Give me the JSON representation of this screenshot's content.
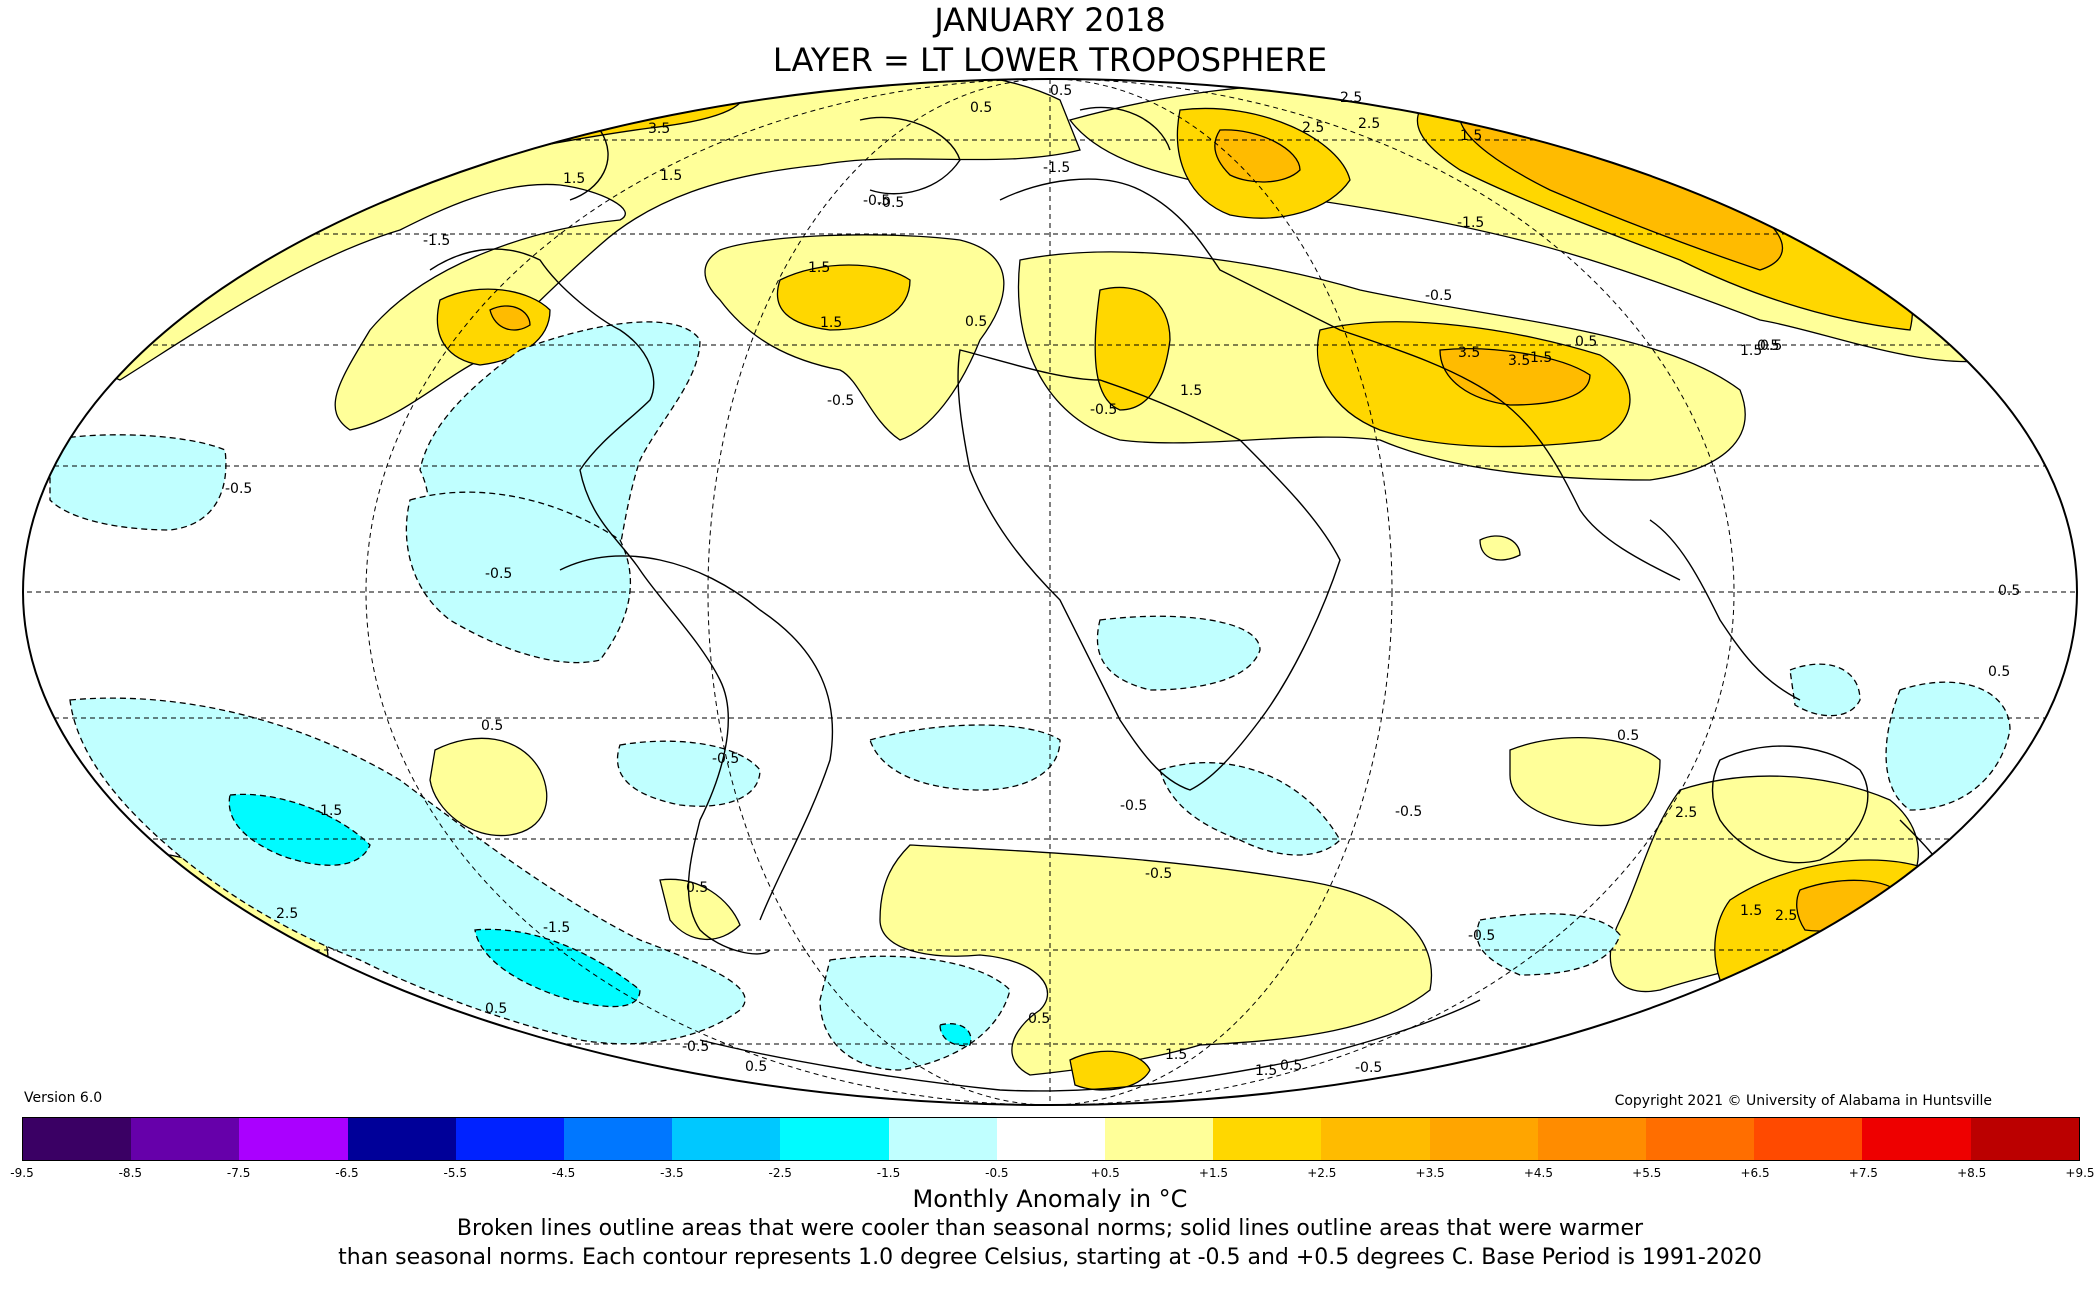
{
  "title": {
    "line1": "JANUARY 2018",
    "line2": "LAYER = LT LOWER TROPOSPHERE"
  },
  "version": "Version 6.0",
  "copyright": "Copyright 2021 © University of Alabama in Huntsville",
  "colorbar": {
    "ticks": [
      "-9.5",
      "-8.5",
      "-7.5",
      "-6.5",
      "-5.5",
      "-4.5",
      "-3.5",
      "-2.5",
      "-1.5",
      "-0.5",
      "+0.5",
      "+1.5",
      "+2.5",
      "+3.5",
      "+4.5",
      "+5.5",
      "+6.5",
      "+7.5",
      "+8.5",
      "+9.5"
    ],
    "colors": [
      "#3a0064",
      "#6600aa",
      "#aa00ff",
      "#000099",
      "#0022ff",
      "#0077ff",
      "#00c8ff",
      "#00fbff",
      "#c0ffff",
      "#ffffff",
      "#ffff99",
      "#ffd700",
      "#ffbb00",
      "#ffa500",
      "#ff8c00",
      "#ff6e00",
      "#ff4a00",
      "#ee0000",
      "#bb0000"
    ]
  },
  "units_label": "Monthly Anomaly in °C",
  "caption": {
    "line1": "Broken lines outline areas that were cooler than seasonal norms; solid lines outline areas that were warmer",
    "line2": "than seasonal norms. Each contour represents 1.0 degree Celsius, starting at -0.5 and +0.5 degrees C. Base Period is 1991-2020"
  },
  "map": {
    "projection": "mollweide",
    "grid": "dashed graticule",
    "contour_labels": [
      "0.5",
      "2.5",
      "3.5",
      "2.5",
      "1.5",
      "1.5",
      "-0.5",
      "-1.5",
      "1.5",
      "0.5",
      "-1.5",
      "1.5",
      "-1.5",
      "-0.5",
      "-0.5",
      "1.5",
      "0.5",
      "1.5",
      "3.5",
      "1.5",
      "-0.5",
      "0.5",
      "-0.5",
      "-0.5",
      "-0.5",
      "0.5",
      "0.5",
      "-0.5",
      "0.5",
      "0.5",
      "-1.5",
      "0.5",
      "-0.5",
      "1.5",
      "2.5",
      "-1.5",
      "0.5",
      "-0.5",
      "0.5",
      "-0.5",
      "2.5",
      "-0.5",
      "-0.5",
      "1.5",
      "1.5",
      "0.5",
      "2.5",
      "3.5",
      "1.5",
      "2.5",
      "0.5",
      "0.5",
      "0.5",
      "-0.5"
    ]
  }
}
